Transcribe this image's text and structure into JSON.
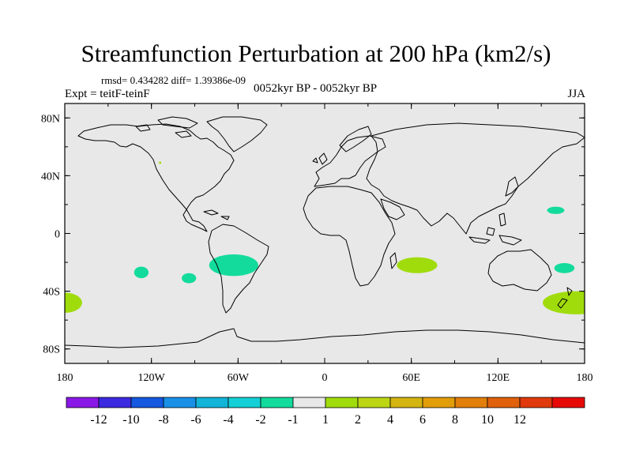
{
  "title": "Streamfunction Perturbation at 200 hPa (km2/s)",
  "subtitle_stats": "rmsd= 0.434282 diff= 1.39386e-09",
  "left_label": "Expt = teitF-teinF",
  "center_label": "0052kyr BP - 0052kyr BP",
  "right_label": "JJA",
  "map": {
    "projection": "cylindrical-equidistant",
    "lon_range": [
      -180,
      180
    ],
    "lat_range": [
      -90,
      90
    ],
    "background_color": "#e8e8e8",
    "lat_ticks": [
      {
        "value": 80,
        "label": "80N"
      },
      {
        "value": 40,
        "label": "40N"
      },
      {
        "value": 0,
        "label": "0"
      },
      {
        "value": -40,
        "label": "40S"
      },
      {
        "value": -80,
        "label": "80S"
      }
    ],
    "lon_ticks": [
      {
        "value": -180,
        "label": "180"
      },
      {
        "value": -120,
        "label": "120W"
      },
      {
        "value": -60,
        "label": "60W"
      },
      {
        "value": 0,
        "label": "0"
      },
      {
        "value": 60,
        "label": "60E"
      },
      {
        "value": 120,
        "label": "120E"
      },
      {
        "value": 180,
        "label": "180"
      }
    ],
    "anomalies": [
      {
        "name": "south-america-negative",
        "lon": -63,
        "lat": -22,
        "lon_radius": 17,
        "lat_radius": 7.5,
        "color": "#13db9c"
      },
      {
        "name": "east-pacific-negative",
        "lon": -127,
        "lat": -27,
        "lon_radius": 5,
        "lat_radius": 4,
        "color": "#13db9c"
      },
      {
        "name": "southeast-pacific-negative",
        "lon": -94,
        "lat": -31,
        "lon_radius": 5,
        "lat_radius": 3.5,
        "color": "#13db9c"
      },
      {
        "name": "north-pacific-negative",
        "lon": 160,
        "lat": 16,
        "lon_radius": 6,
        "lat_radius": 2.5,
        "color": "#13db9c"
      },
      {
        "name": "southwest-pacific-negative",
        "lon": 166,
        "lat": -24,
        "lon_radius": 7,
        "lat_radius": 3.5,
        "color": "#13db9c"
      },
      {
        "name": "south-indian-positive",
        "lon": 64,
        "lat": -22,
        "lon_radius": 14,
        "lat_radius": 5.5,
        "color": "#a0dc0c"
      },
      {
        "name": "southeast-pacific-positive-west",
        "lon": -180,
        "lat": -48,
        "lon_radius": 12,
        "lat_radius": 7,
        "color": "#a0dc0c"
      },
      {
        "name": "southwest-pacific-positive-east",
        "lon": 174,
        "lat": -48,
        "lon_radius": 23,
        "lat_radius": 8,
        "color": "#a0dc0c"
      },
      {
        "name": "atlantic-small-positive",
        "lon": -114,
        "lat": 49,
        "lon_radius": 0.8,
        "lat_radius": 0.8,
        "color": "#a0dc0c"
      }
    ]
  },
  "colorbar": {
    "colors": [
      "#8a18e6",
      "#3c2ae0",
      "#1458e0",
      "#1890e6",
      "#12b4d8",
      "#14cfd6",
      "#13db9c",
      "#e8e8e8",
      "#a0dc0c",
      "#bcd614",
      "#d4b410",
      "#e29e0a",
      "#e27e0a",
      "#e0600c",
      "#e03a0c",
      "#e60a06"
    ],
    "labels": [
      "-12",
      "-10",
      "-8",
      "-6",
      "-4",
      "-2",
      "-1",
      "1",
      "2",
      "4",
      "6",
      "8",
      "10",
      "12"
    ]
  }
}
